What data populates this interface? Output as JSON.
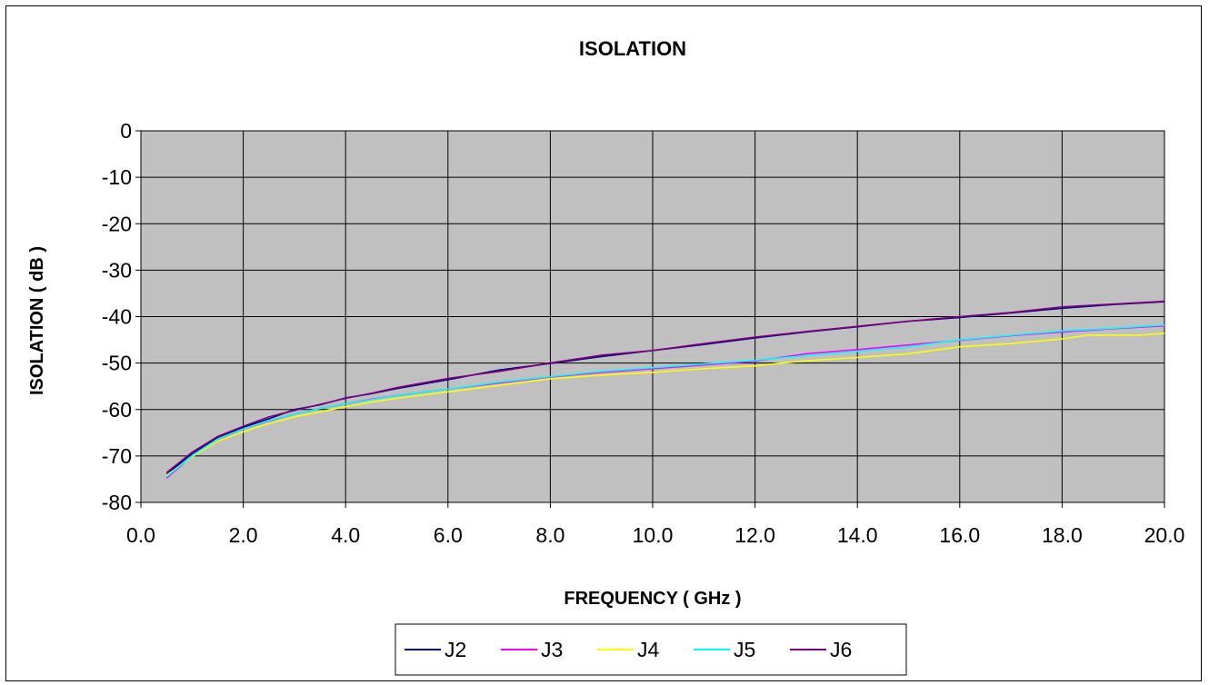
{
  "chart_data": {
    "type": "line",
    "title": "ISOLATION",
    "xlabel": "FREQUENCY ( GHz )",
    "ylabel": "ISOLATION ( dB )",
    "xlim": [
      0.0,
      20.0
    ],
    "ylim": [
      -80,
      0
    ],
    "x_ticks": [
      "0.0",
      "2.0",
      "4.0",
      "6.0",
      "8.0",
      "10.0",
      "12.0",
      "14.0",
      "16.0",
      "18.0",
      "20.0"
    ],
    "y_ticks": [
      "0",
      "-10",
      "-20",
      "-30",
      "-40",
      "-50",
      "-60",
      "-70",
      "-80"
    ],
    "grid": true,
    "legend_position": "bottom",
    "plot_background": "#c0c0c0",
    "series": [
      {
        "name": "J2",
        "color": "#000080",
        "points": [
          [
            0.5,
            -74
          ],
          [
            1,
            -69.5
          ],
          [
            1.5,
            -66
          ],
          [
            2,
            -63.8
          ],
          [
            2.5,
            -62
          ],
          [
            3,
            -60
          ],
          [
            3.5,
            -59
          ],
          [
            4,
            -57.5
          ],
          [
            4.5,
            -56.6
          ],
          [
            5,
            -55.5
          ],
          [
            6,
            -53.6
          ],
          [
            7,
            -51.5
          ],
          [
            8,
            -50.1
          ],
          [
            9,
            -48.6
          ],
          [
            10,
            -47.3
          ],
          [
            11,
            -46
          ],
          [
            12,
            -44.6
          ],
          [
            13,
            -43.3
          ],
          [
            14,
            -42.2
          ],
          [
            15,
            -41
          ],
          [
            16,
            -40.2
          ],
          [
            17,
            -39.2
          ],
          [
            18,
            -38.2
          ],
          [
            19,
            -37.4
          ],
          [
            20,
            -36.8
          ]
        ]
      },
      {
        "name": "J3",
        "color": "#ff00ff",
        "points": [
          [
            0.5,
            -74.8
          ],
          [
            1,
            -70
          ],
          [
            1.5,
            -66.5
          ],
          [
            2,
            -64.2
          ],
          [
            2.5,
            -62.5
          ],
          [
            3,
            -61
          ],
          [
            3.5,
            -59.8
          ],
          [
            4,
            -58.8
          ],
          [
            4.5,
            -57.8
          ],
          [
            5,
            -57
          ],
          [
            6,
            -55.6
          ],
          [
            7,
            -54.3
          ],
          [
            8,
            -53
          ],
          [
            9,
            -52
          ],
          [
            10,
            -51.2
          ],
          [
            11,
            -50.4
          ],
          [
            12,
            -49.6
          ],
          [
            13,
            -48
          ],
          [
            14,
            -47.1
          ],
          [
            15,
            -46.1
          ],
          [
            16,
            -45.1
          ],
          [
            17,
            -44.1
          ],
          [
            18,
            -43.3
          ],
          [
            19,
            -42.6
          ],
          [
            20,
            -42
          ]
        ]
      },
      {
        "name": "J4",
        "color": "#ffff00",
        "points": [
          [
            0.5,
            -74.2
          ],
          [
            1,
            -70.2
          ],
          [
            1.5,
            -66.8
          ],
          [
            2,
            -64.8
          ],
          [
            2.5,
            -63
          ],
          [
            3,
            -61.6
          ],
          [
            3.5,
            -60.5
          ],
          [
            4,
            -59.4
          ],
          [
            4.5,
            -58.4
          ],
          [
            5,
            -57.6
          ],
          [
            6,
            -56.2
          ],
          [
            7,
            -54.8
          ],
          [
            8,
            -53.4
          ],
          [
            9,
            -52.6
          ],
          [
            10,
            -52
          ],
          [
            11,
            -51.2
          ],
          [
            12,
            -50.6
          ],
          [
            13,
            -49.5
          ],
          [
            14,
            -48.8
          ],
          [
            15,
            -48
          ],
          [
            16,
            -46.5
          ],
          [
            17,
            -45.8
          ],
          [
            18,
            -44.8
          ],
          [
            18.5,
            -44
          ],
          [
            19,
            -44
          ],
          [
            19.5,
            -44
          ],
          [
            20,
            -43.6
          ]
        ]
      },
      {
        "name": "J5",
        "color": "#00ffff",
        "points": [
          [
            0.5,
            -74.5
          ],
          [
            1,
            -70
          ],
          [
            1.5,
            -66.4
          ],
          [
            2,
            -64.2
          ],
          [
            2.5,
            -62.4
          ],
          [
            3,
            -61
          ],
          [
            3.5,
            -59.8
          ],
          [
            4,
            -58.8
          ],
          [
            4.5,
            -57.9
          ],
          [
            5,
            -57
          ],
          [
            6,
            -55.6
          ],
          [
            7,
            -54.1
          ],
          [
            8,
            -52.9
          ],
          [
            9,
            -51.8
          ],
          [
            10,
            -51
          ],
          [
            11,
            -50.2
          ],
          [
            12,
            -49.4
          ],
          [
            13,
            -48.4
          ],
          [
            14,
            -47.5
          ],
          [
            15,
            -46.5
          ],
          [
            16,
            -45
          ],
          [
            17,
            -44
          ],
          [
            18,
            -43.1
          ],
          [
            19,
            -42.5
          ],
          [
            20,
            -41.8
          ]
        ]
      },
      {
        "name": "J6",
        "color": "#800080",
        "points": [
          [
            0.5,
            -73.6
          ],
          [
            1,
            -69.2
          ],
          [
            1.5,
            -65.8
          ],
          [
            2,
            -63.6
          ],
          [
            2.5,
            -61.6
          ],
          [
            3,
            -60.2
          ],
          [
            3.5,
            -58.9
          ],
          [
            4,
            -57.6
          ],
          [
            4.5,
            -56.5
          ],
          [
            5,
            -55.3
          ],
          [
            6,
            -53.3
          ],
          [
            7,
            -51.8
          ],
          [
            8,
            -50
          ],
          [
            9,
            -48.3
          ],
          [
            10,
            -47.3
          ],
          [
            11,
            -45.8
          ],
          [
            12,
            -44.4
          ],
          [
            13,
            -43.2
          ],
          [
            14,
            -42.1
          ],
          [
            15,
            -41
          ],
          [
            16,
            -40
          ],
          [
            17,
            -39.1
          ],
          [
            18,
            -37.9
          ],
          [
            19,
            -37.3
          ],
          [
            20,
            -36.7
          ]
        ]
      }
    ]
  }
}
